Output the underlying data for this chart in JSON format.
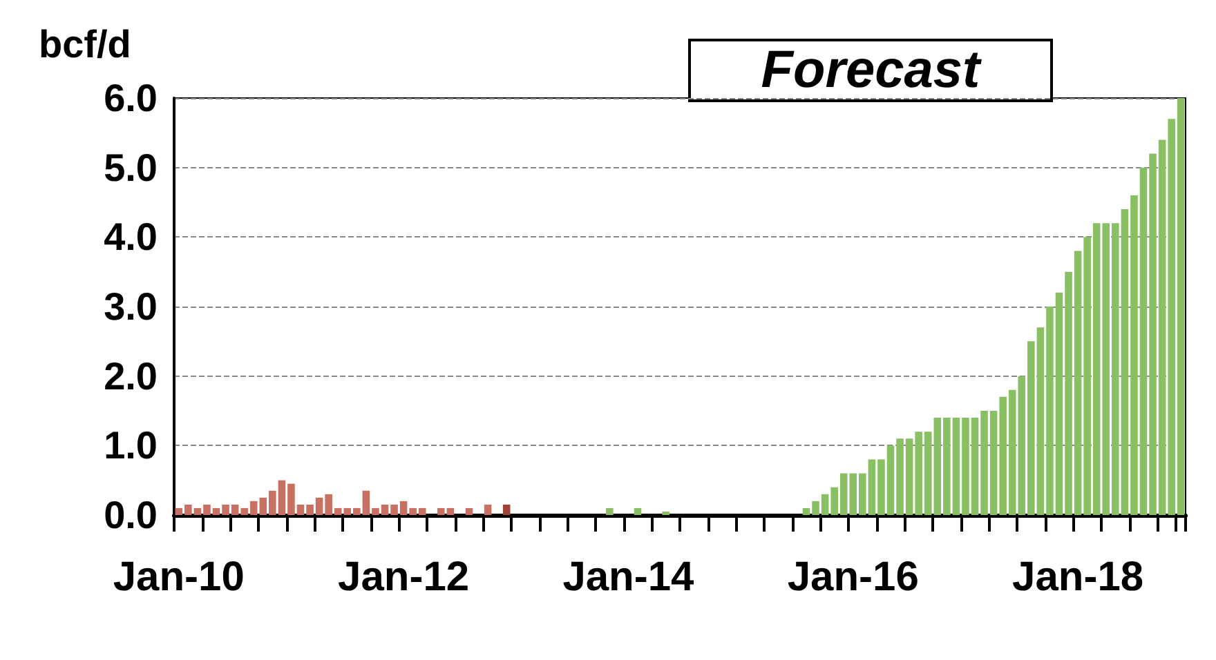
{
  "chart_data": {
    "type": "bar",
    "ylabel": "bcf/d",
    "annotations": [
      "Forecast"
    ],
    "categories": [
      "Jan-10",
      null,
      null,
      null,
      null,
      null,
      null,
      null,
      null,
      null,
      null,
      null,
      null,
      null,
      null,
      null,
      null,
      null,
      null,
      null,
      null,
      null,
      null,
      null,
      "Jan-12",
      null,
      null,
      null,
      null,
      null,
      null,
      null,
      null,
      null,
      null,
      null,
      null,
      null,
      null,
      null,
      null,
      null,
      null,
      null,
      null,
      null,
      null,
      null,
      "Jan-14",
      null,
      null,
      null,
      null,
      null,
      null,
      null,
      null,
      null,
      null,
      null,
      null,
      null,
      null,
      null,
      null,
      null,
      null,
      null,
      null,
      null,
      null,
      null,
      "Jan-16",
      null,
      null,
      null,
      null,
      null,
      null,
      null,
      null,
      null,
      null,
      null,
      null,
      null,
      null,
      null,
      null,
      null,
      null,
      null,
      null,
      null,
      null,
      null,
      "Jan-18",
      null,
      null,
      null,
      null,
      null,
      null,
      null,
      null,
      null,
      null,
      null
    ],
    "values": [
      0.1,
      0.15,
      0.1,
      0.15,
      0.1,
      0.15,
      0.15,
      0.1,
      0.2,
      0.25,
      0.35,
      0.5,
      0.45,
      0.15,
      0.15,
      0.25,
      0.3,
      0.1,
      0.1,
      0.1,
      0.35,
      0.1,
      0.15,
      0.15,
      0.2,
      0.1,
      0.1,
      0,
      0.1,
      0.1,
      0,
      0.1,
      0,
      0.15,
      0,
      0.15,
      0,
      0,
      0,
      0,
      0,
      0,
      0,
      0,
      0,
      0,
      0.1,
      0,
      0,
      0.1,
      0,
      0,
      0.05,
      0,
      0,
      0,
      0,
      0,
      0,
      0,
      0,
      0,
      0,
      0,
      0,
      0,
      0,
      0.1,
      0.2,
      0.3,
      0.4,
      0.6,
      0.6,
      0.6,
      0.8,
      0.8,
      1.0,
      1.1,
      1.1,
      1.2,
      1.2,
      1.4,
      1.4,
      1.4,
      1.4,
      1.4,
      1.5,
      1.5,
      1.7,
      1.8,
      2.0,
      2.5,
      2.7,
      3.0,
      3.2,
      3.5,
      3.8,
      4.0,
      4.2,
      4.2,
      4.2,
      4.4,
      4.6,
      5.0,
      5.2,
      5.4,
      5.7,
      6.0
    ],
    "colors": [
      "#c87163",
      "#c87163",
      "#c87163",
      "#c87163",
      "#c87163",
      "#c87163",
      "#c87163",
      "#c87163",
      "#c87163",
      "#c87163",
      "#c87163",
      "#c87163",
      "#c87163",
      "#c87163",
      "#c87163",
      "#c87163",
      "#c87163",
      "#c87163",
      "#c87163",
      "#c87163",
      "#c87163",
      "#c87163",
      "#c87163",
      "#c87163",
      "#c87163",
      "#c87163",
      "#c87163",
      "#c87163",
      "#c87163",
      "#c87163",
      "#c87163",
      "#c87163",
      "#c87163",
      "#c87163",
      "#c87163",
      "#9e4536",
      "#88c063",
      "#88c063",
      "#88c063",
      "#88c063",
      "#88c063",
      "#88c063",
      "#88c063",
      "#88c063",
      "#88c063",
      "#88c063",
      "#88c063",
      "#88c063",
      "#88c063",
      "#88c063",
      "#88c063",
      "#88c063",
      "#88c063",
      "#88c063",
      "#88c063",
      "#88c063",
      "#88c063",
      "#88c063",
      "#88c063",
      "#88c063",
      "#88c063",
      "#88c063",
      "#88c063",
      "#88c063",
      "#88c063",
      "#88c063",
      "#88c063",
      "#88c063",
      "#88c063",
      "#88c063",
      "#88c063",
      "#88c063",
      "#88c063",
      "#88c063",
      "#88c063",
      "#88c063",
      "#88c063",
      "#88c063",
      "#88c063",
      "#88c063",
      "#88c063",
      "#88c063",
      "#88c063",
      "#88c063",
      "#88c063",
      "#88c063",
      "#88c063",
      "#88c063",
      "#88c063",
      "#88c063",
      "#88c063",
      "#88c063",
      "#88c063",
      "#88c063",
      "#88c063",
      "#88c063",
      "#88c063",
      "#88c063",
      "#88c063",
      "#88c063",
      "#88c063",
      "#88c063",
      "#88c063",
      "#88c063",
      "#88c063",
      "#88c063",
      "#88c063",
      "#88c063"
    ],
    "ylim": [
      0,
      6
    ],
    "yticks": [
      {
        "value": 0,
        "label": "0.0"
      },
      {
        "value": 1,
        "label": "1.0"
      },
      {
        "value": 2,
        "label": "2.0"
      },
      {
        "value": 3,
        "label": "3.0"
      },
      {
        "value": 4,
        "label": "4.0"
      },
      {
        "value": 5,
        "label": "5.0"
      },
      {
        "value": 6,
        "label": "6.0"
      }
    ],
    "grid": "y"
  }
}
